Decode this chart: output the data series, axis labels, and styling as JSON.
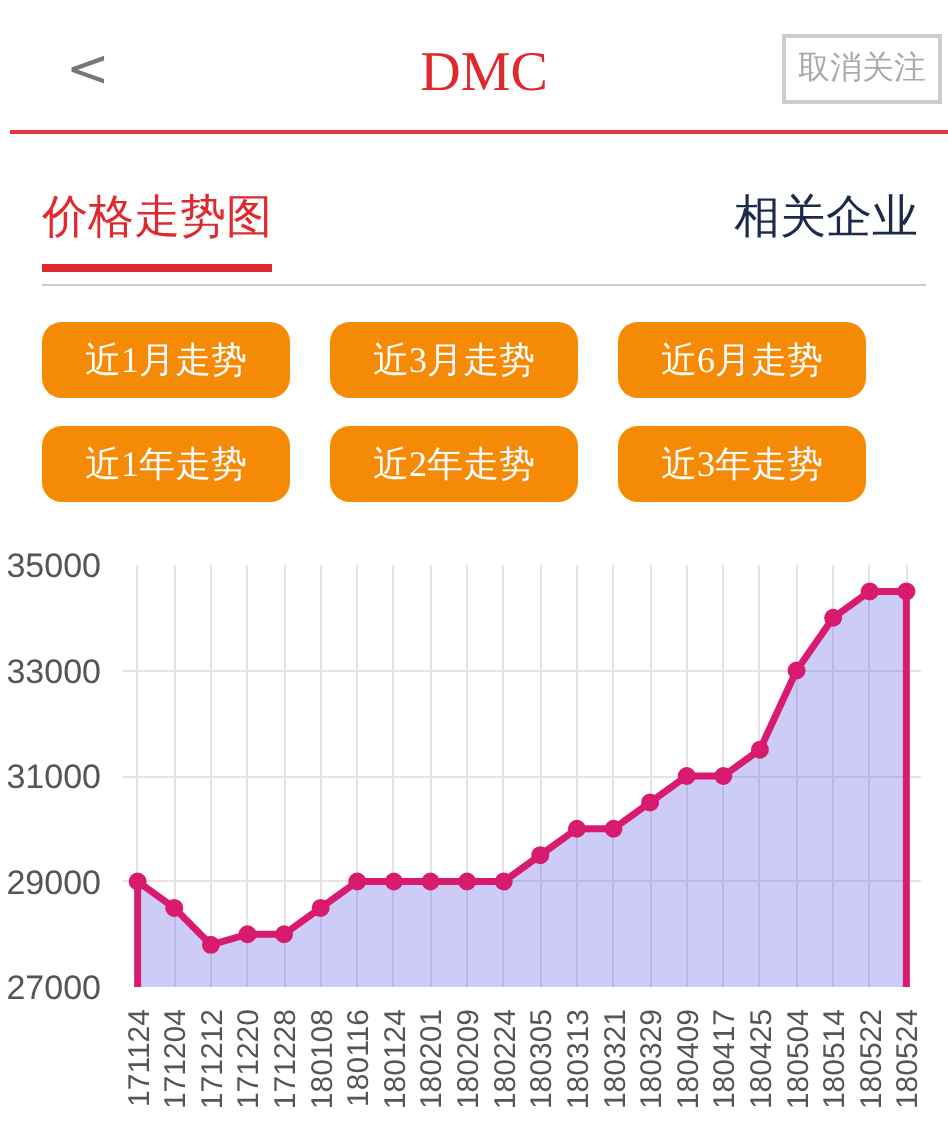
{
  "chart_data": {
    "type": "area",
    "title": "DMC",
    "subtitle": "价格走势图",
    "annotations": [
      "<",
      "取消关注",
      "相关企业",
      "近1月走势",
      "近3月走势",
      "近6月走势",
      "近1年走势",
      "近2年走势",
      "近3年走势"
    ],
    "categories": [
      "171124",
      "171204",
      "171212",
      "171220",
      "171228",
      "180108",
      "180116",
      "180124",
      "180201",
      "180209",
      "180224",
      "180305",
      "180313",
      "180321",
      "180329",
      "180409",
      "180417",
      "180425",
      "180504",
      "180514",
      "180522",
      "180524"
    ],
    "series": [
      {
        "color": "#d81b6e",
        "values": [
          29000,
          28500,
          27800,
          28000,
          28000,
          28500,
          29000,
          29000,
          29000,
          29000,
          29000,
          29500,
          30000,
          30000,
          30500,
          31000,
          31000,
          31500,
          33000,
          34000,
          34500,
          34500
        ]
      }
    ],
    "ylim": [
      27000,
      35000
    ],
    "yticks": [
      27000,
      29000,
      31000,
      33000,
      35000
    ],
    "grid": true,
    "marker": "circle",
    "line_style": "solid"
  }
}
